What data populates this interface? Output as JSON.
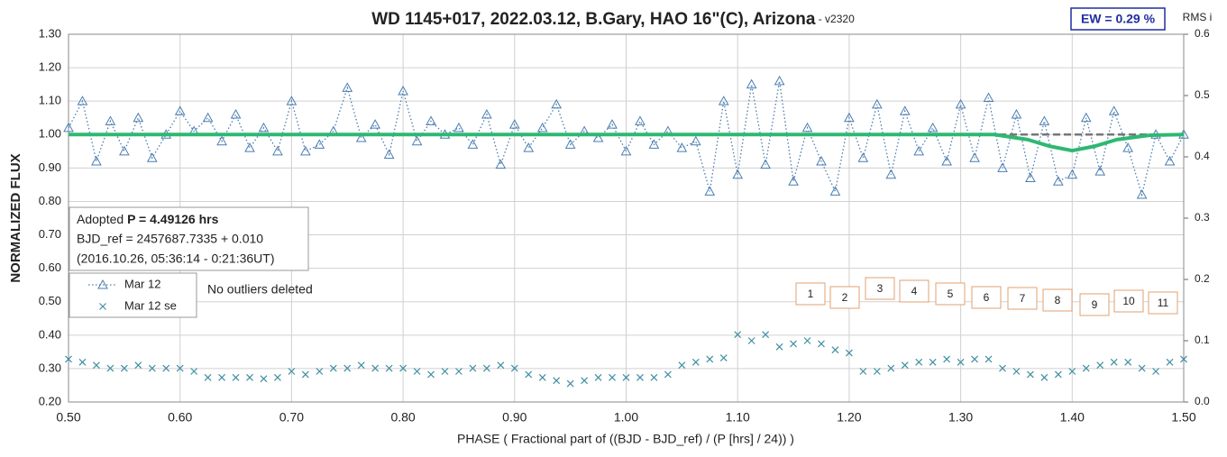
{
  "chart_data": {
    "type": "scatter",
    "title": "WD 1145+017, 2022.03.12, B.Gary, HAO 16\"(C), Arizona",
    "subtitle": " - v2320",
    "badge": "EW = 0.29 %",
    "y2_label": "RMS i",
    "y_label": "NORMALIZED FLUX",
    "x_label": "PHASE ( Fractional part of ((BJD - BJD_ref) / (P [hrs] / 24)) )",
    "annotation": {
      "prefix": "Adopted ",
      "period": "P = 4.49126 hrs",
      "line2": "BJD_ref = 2457687.7335 + 0.010",
      "line3": "(2016.10.26, 05:36:14 - 0:21:36UT)"
    },
    "note": "No outliers deleted",
    "segments": [
      "1",
      "2",
      "3",
      "4",
      "5",
      "6",
      "7",
      "8",
      "9",
      "10",
      "11"
    ],
    "grid": true,
    "xlim": [
      0.5,
      1.5
    ],
    "xticks": [
      {
        "value": 0.5,
        "label": "0.50"
      },
      {
        "value": 0.6,
        "label": "0.60"
      },
      {
        "value": 0.7,
        "label": "0.70"
      },
      {
        "value": 0.8,
        "label": "0.80"
      },
      {
        "value": 0.9,
        "label": "0.90"
      },
      {
        "value": 1.0,
        "label": "1.00"
      },
      {
        "value": 1.1,
        "label": "1.10"
      },
      {
        "value": 1.2,
        "label": "1.20"
      },
      {
        "value": 1.3,
        "label": "1.30"
      },
      {
        "value": 1.4,
        "label": "1.40"
      },
      {
        "value": 1.5,
        "label": "1.50"
      }
    ],
    "ylim": [
      0.2,
      1.3
    ],
    "yticks": [
      {
        "value": 0.2,
        "label": "0.20"
      },
      {
        "value": 0.3,
        "label": "0.30"
      },
      {
        "value": 0.4,
        "label": "0.40"
      },
      {
        "value": 0.5,
        "label": "0.50"
      },
      {
        "value": 0.6,
        "label": "0.60"
      },
      {
        "value": 0.7,
        "label": "0.70"
      },
      {
        "value": 0.8,
        "label": "0.80"
      },
      {
        "value": 0.9,
        "label": "0.90"
      },
      {
        "value": 1.0,
        "label": "1.00"
      },
      {
        "value": 1.1,
        "label": "1.10"
      },
      {
        "value": 1.2,
        "label": "1.20"
      },
      {
        "value": 1.3,
        "label": "1.30"
      }
    ],
    "y2lim": [
      0,
      0.6
    ],
    "y2ticks": [
      {
        "value": 0,
        "label": "0.0"
      },
      0.1,
      0.2,
      0.3,
      0.4,
      0.5,
      0.6
    ],
    "x": [
      0.5,
      0.5125,
      0.525,
      0.5375,
      0.55,
      0.5625,
      0.575,
      0.5875,
      0.6,
      0.6125,
      0.625,
      0.6375,
      0.65,
      0.6625,
      0.675,
      0.6875,
      0.7,
      0.7125,
      0.725,
      0.7375,
      0.75,
      0.7625,
      0.775,
      0.7875,
      0.8,
      0.8125,
      0.825,
      0.8375,
      0.85,
      0.8625,
      0.875,
      0.8875,
      0.9,
      0.9125,
      0.925,
      0.9375,
      0.95,
      0.9625,
      0.975,
      0.9875,
      1.0,
      1.0125,
      1.025,
      1.0375,
      1.05,
      1.0625,
      1.075,
      1.0875,
      1.1,
      1.1125,
      1.125,
      1.1375,
      1.15,
      1.1625,
      1.175,
      1.1875,
      1.2,
      1.2125,
      1.225,
      1.2375,
      1.25,
      1.2625,
      1.275,
      1.2875,
      1.3,
      1.3125,
      1.325,
      1.3375,
      1.35,
      1.3625,
      1.375,
      1.3875,
      1.4,
      1.4125,
      1.425,
      1.4375,
      1.45,
      1.4625,
      1.475,
      1.4875,
      1.5
    ],
    "series": [
      {
        "name": "Mar 12",
        "color": "#4a7db0",
        "marker": "triangle",
        "values": [
          1.02,
          1.1,
          0.92,
          1.04,
          0.95,
          1.05,
          0.93,
          1.0,
          1.07,
          1.01,
          1.05,
          0.98,
          1.06,
          0.96,
          1.02,
          0.95,
          1.1,
          0.95,
          0.97,
          1.01,
          1.14,
          0.99,
          1.03,
          0.94,
          1.13,
          0.98,
          1.04,
          1.0,
          1.02,
          0.97,
          1.06,
          0.91,
          1.03,
          0.96,
          1.02,
          1.09,
          0.97,
          1.01,
          0.99,
          1.03,
          0.95,
          1.04,
          0.97,
          1.01,
          0.96,
          0.98,
          0.83,
          1.1,
          0.88,
          1.15,
          0.91,
          1.16,
          0.86,
          1.02,
          0.92,
          0.83,
          1.05,
          0.93,
          1.09,
          0.88,
          1.07,
          0.95,
          1.02,
          0.92,
          1.09,
          0.93,
          1.11,
          0.9,
          1.06,
          0.87,
          1.04,
          0.86,
          0.88,
          1.05,
          0.89,
          1.07,
          0.96,
          0.82,
          1.0,
          0.92,
          1.0
        ]
      },
      {
        "name": "Mar 12 se",
        "color": "#3f8fa3",
        "marker": "x",
        "axis": "y2",
        "values": [
          0.07,
          0.065,
          0.06,
          0.055,
          0.055,
          0.06,
          0.055,
          0.055,
          0.055,
          0.05,
          0.04,
          0.04,
          0.04,
          0.04,
          0.038,
          0.04,
          0.05,
          0.045,
          0.05,
          0.055,
          0.055,
          0.06,
          0.055,
          0.055,
          0.055,
          0.05,
          0.045,
          0.05,
          0.05,
          0.055,
          0.055,
          0.06,
          0.055,
          0.045,
          0.04,
          0.035,
          0.03,
          0.035,
          0.04,
          0.04,
          0.04,
          0.04,
          0.04,
          0.045,
          0.06,
          0.065,
          0.07,
          0.072,
          0.11,
          0.1,
          0.11,
          0.09,
          0.095,
          0.1,
          0.095,
          0.085,
          0.08,
          0.05,
          0.05,
          0.055,
          0.06,
          0.065,
          0.065,
          0.07,
          0.065,
          0.07,
          0.07,
          0.055,
          0.05,
          0.045,
          0.04,
          0.045,
          0.05,
          0.055,
          0.06,
          0.065,
          0.065,
          0.055,
          0.05,
          0.065,
          0.07
        ]
      }
    ],
    "lines": [
      {
        "color": "#777777",
        "dash": true,
        "x": [
          0.5,
          1.5
        ],
        "values": [
          1.0,
          1.0
        ]
      },
      {
        "color": "#2eb872",
        "dash": false,
        "x": [
          0.5,
          1.33,
          1.36,
          1.38,
          1.4,
          1.42,
          1.44,
          1.47,
          1.5
        ],
        "values": [
          1.0,
          1.0,
          0.985,
          0.965,
          0.952,
          0.965,
          0.985,
          0.998,
          1.0
        ]
      }
    ]
  }
}
